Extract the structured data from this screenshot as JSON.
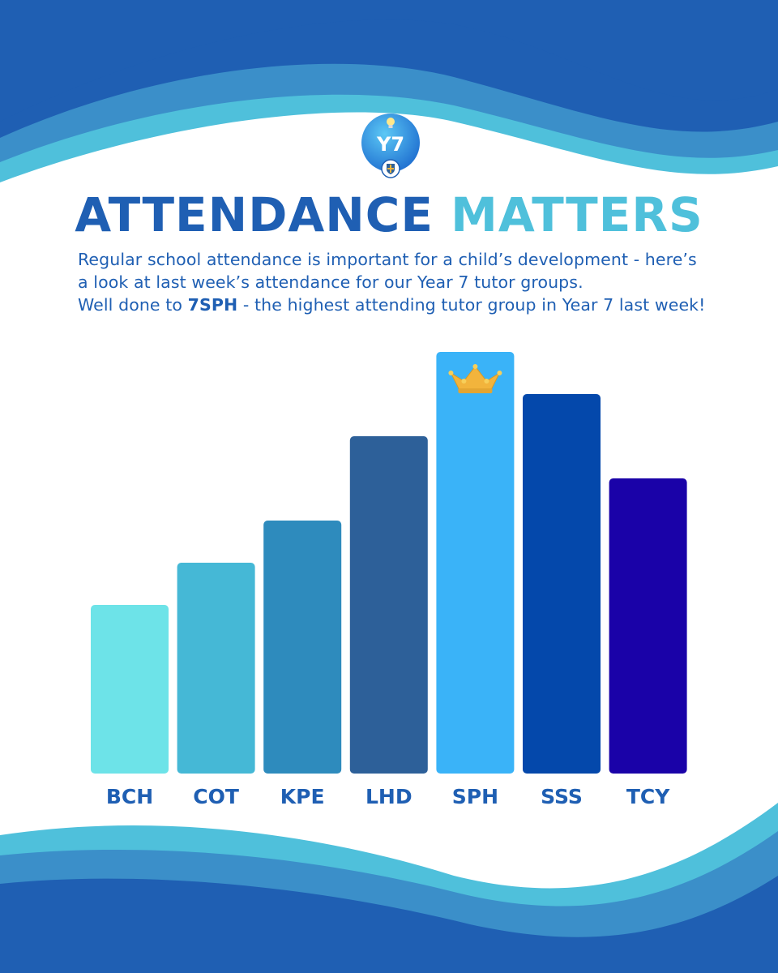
{
  "header": {
    "logo_text": "Y7",
    "title_part1": "ATTENDANCE",
    "title_part2": "MATTERS"
  },
  "intro": {
    "line1": "Regular school attendance is important for a child’s development - here’s",
    "line2": "a look at last week’s attendance for our Year 7 tutor groups.",
    "line3_prefix": "Well done to ",
    "line3_highlight": "7SPH",
    "line3_suffix": " - the highest attending tutor group in Year 7 last week!"
  },
  "colors": {
    "navy": "#1f5fb3",
    "aqua": "#4fc0db",
    "crown": "#f2b43c"
  },
  "chart_data": {
    "type": "bar",
    "title": "",
    "xlabel": "",
    "ylabel": "",
    "categories": [
      "BCH",
      "COT",
      "KPE",
      "LHD",
      "SPH",
      "SSS",
      "TCY"
    ],
    "values": [
      40,
      50,
      60,
      80,
      100,
      90,
      70
    ],
    "colors": [
      "#6de3e8",
      "#45b8d6",
      "#2e8bbd",
      "#2d6099",
      "#3ab3f8",
      "#0448ab",
      "#1a02a8"
    ],
    "ylim": [
      0,
      100
    ],
    "highlight": {
      "category": "SPH",
      "marker": "crown-icon"
    },
    "grid": false,
    "legend": "none"
  }
}
